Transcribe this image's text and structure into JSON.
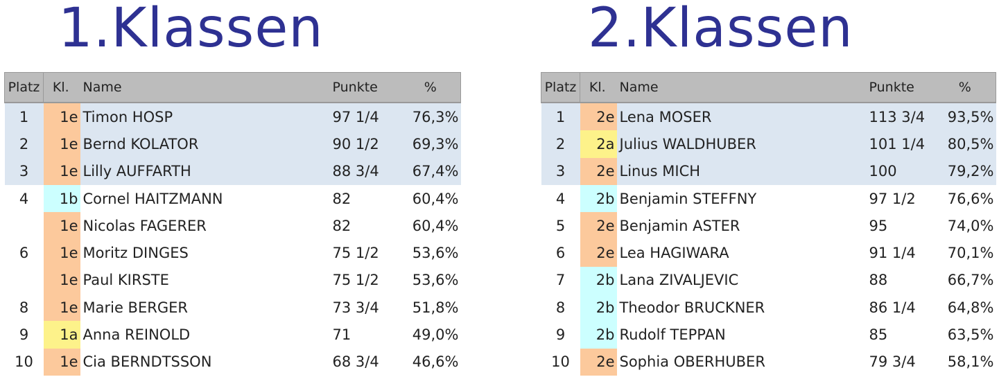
{
  "headers": {
    "platz": "Platz",
    "kl": "Kl.",
    "name": "Name",
    "punkte": "Punkte",
    "pct": "%"
  },
  "tables": [
    {
      "title": "1.Klassen",
      "rows": [
        {
          "platz": "1",
          "kl": "1e",
          "name": "Timon HOSP",
          "punkte": "97 1/4",
          "pct": "76,3%",
          "top": true
        },
        {
          "platz": "2",
          "kl": "1e",
          "name": "Bernd KOLATOR",
          "punkte": "90 1/2",
          "pct": "69,3%",
          "top": true
        },
        {
          "platz": "3",
          "kl": "1e",
          "name": "Lilly AUFFARTH",
          "punkte": "88 3/4",
          "pct": "67,4%",
          "top": true
        },
        {
          "platz": "4",
          "kl": "1b",
          "name": "Cornel HAITZMANN",
          "punkte": "82",
          "pct": "60,4%",
          "top": false
        },
        {
          "platz": "",
          "kl": "1e",
          "name": "Nicolas FAGERER",
          "punkte": "82",
          "pct": "60,4%",
          "top": false
        },
        {
          "platz": "6",
          "kl": "1e",
          "name": "Moritz DINGES",
          "punkte": "75 1/2",
          "pct": "53,6%",
          "top": false
        },
        {
          "platz": "",
          "kl": "1e",
          "name": "Paul KIRSTE",
          "punkte": "75 1/2",
          "pct": "53,6%",
          "top": false
        },
        {
          "platz": "8",
          "kl": "1e",
          "name": "Marie BERGER",
          "punkte": "73 3/4",
          "pct": "51,8%",
          "top": false
        },
        {
          "platz": "9",
          "kl": "1a",
          "name": "Anna REINOLD",
          "punkte": "71",
          "pct": "49,0%",
          "top": false
        },
        {
          "platz": "10",
          "kl": "1e",
          "name": "Cia BERNDTSSON",
          "punkte": "68 3/4",
          "pct": "46,6%",
          "top": false
        }
      ]
    },
    {
      "title": "2.Klassen",
      "rows": [
        {
          "platz": "1",
          "kl": "2e",
          "name": "Lena MOSER",
          "punkte": "113 3/4",
          "pct": "93,5%",
          "top": true
        },
        {
          "platz": "2",
          "kl": "2a",
          "name": "Julius WALDHUBER",
          "punkte": "101 1/4",
          "pct": "80,5%",
          "top": true
        },
        {
          "platz": "3",
          "kl": "2e",
          "name": "Linus MICH",
          "punkte": "100",
          "pct": "79,2%",
          "top": true
        },
        {
          "platz": "4",
          "kl": "2b",
          "name": "Benjamin STEFFNY",
          "punkte": "97 1/2",
          "pct": "76,6%",
          "top": false
        },
        {
          "platz": "5",
          "kl": "2e",
          "name": "Benjamin ASTER",
          "punkte": "95",
          "pct": "74,0%",
          "top": false
        },
        {
          "platz": "6",
          "kl": "2e",
          "name": "Lea HAGIWARA",
          "punkte": "91 1/4",
          "pct": "70,1%",
          "top": false
        },
        {
          "platz": "7",
          "kl": "2b",
          "name": "Lana ZIVALJEVIC",
          "punkte": "88",
          "pct": "66,7%",
          "top": false
        },
        {
          "platz": "8",
          "kl": "2b",
          "name": "Theodor BRUCKNER",
          "punkte": "86 1/4",
          "pct": "64,8%",
          "top": false
        },
        {
          "platz": "9",
          "kl": "2b",
          "name": "Rudolf TEPPAN",
          "punkte": "85",
          "pct": "63,5%",
          "top": false
        },
        {
          "platz": "10",
          "kl": "2e",
          "name": "Sophia OBERHUBER",
          "punkte": "79 3/4",
          "pct": "58,1%",
          "top": false
        }
      ]
    }
  ],
  "colors": {
    "title": "#2e3192",
    "header_bg": "#bcbcbc",
    "top_row_bg": "#dce6f1",
    "class_e_bg": "#fcc99c",
    "class_b_bg": "#ccffff",
    "class_a_bg": "#fdf28a"
  }
}
